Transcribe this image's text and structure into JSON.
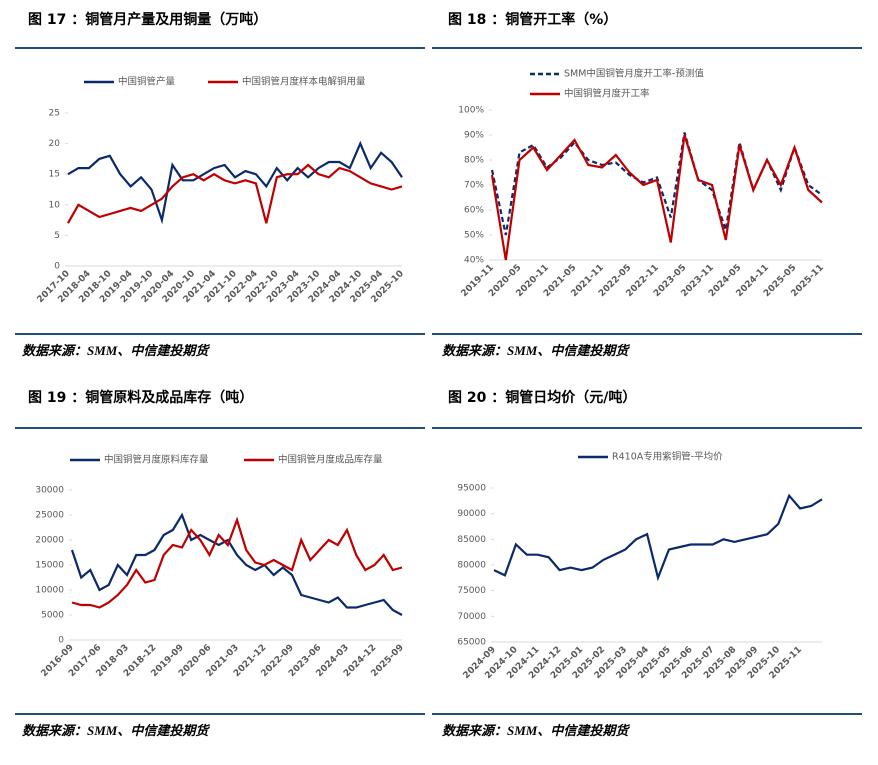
{
  "chart_data": [
    {
      "type": "line",
      "title": "图 17 ：铜管月产量及用铜量（万吨）",
      "source": "数据来源：SMM、中信建投期货",
      "categories": [
        "2017-10",
        null,
        "2018-04",
        null,
        "2018-10",
        null,
        "2019-04",
        null,
        "2019-10",
        null,
        "2020-04",
        null,
        "2020-10",
        null,
        "2021-04",
        null,
        "2021-10",
        null,
        "2022-04",
        null,
        "2022-10",
        null,
        "2023-04",
        null,
        "2023-10",
        null,
        "2024-04",
        null,
        "2024-10",
        null,
        "2025-04",
        null,
        "2025-10"
      ],
      "series": [
        {
          "name": "中国铜管产量",
          "color": "#0b2a6b",
          "values": [
            15,
            16,
            16,
            17.5,
            18,
            15,
            13,
            14.5,
            12.5,
            7.5,
            16.5,
            14,
            14,
            15,
            16,
            16.5,
            14.5,
            15.5,
            15,
            13,
            16,
            14,
            16,
            14.5,
            16,
            17,
            17,
            16,
            20,
            16,
            18.5,
            17,
            14.5
          ]
        },
        {
          "name": "中国铜管月度样本电解铜用量",
          "color": "#c00000",
          "values": [
            7,
            10,
            9,
            8,
            8.5,
            9,
            9.5,
            9,
            10,
            11,
            13,
            14.5,
            15,
            14,
            15,
            14,
            13.5,
            14,
            13.5,
            7,
            14.5,
            15,
            15,
            16.5,
            15,
            14.5,
            16,
            15.5,
            14.5,
            13.5,
            13,
            12.5,
            13
          ]
        }
      ],
      "ylim": [
        0,
        25
      ],
      "yticks": [
        0,
        5,
        10,
        15,
        20,
        25
      ]
    },
    {
      "type": "line",
      "title": "图 18 ：铜管开工率（%）",
      "source": "数据来源：SMM、中信建投期货",
      "categories": [
        "2019-11",
        null,
        "2020-05",
        null,
        "2020-11",
        null,
        "2021-05",
        null,
        "2021-11",
        null,
        "2022-05",
        null,
        "2022-11",
        null,
        "2023-05",
        null,
        "2023-11",
        null,
        "2024-05",
        null,
        "2024-11",
        null,
        "2025-05",
        null,
        "2025-11"
      ],
      "series": [
        {
          "name": "SMM中国铜管月度开工率-预测值",
          "color": "#0b2a6b",
          "line_style": "dashed",
          "values": [
            76,
            50,
            83,
            86,
            77,
            81,
            87,
            80,
            78,
            79,
            74,
            71,
            73,
            57,
            91,
            72,
            68,
            52,
            87,
            68,
            80,
            68,
            85,
            70,
            66
          ]
        },
        {
          "name": "中国铜管月度开工率",
          "color": "#c00000",
          "values": [
            74,
            40,
            80,
            85,
            76,
            82,
            88,
            78,
            77,
            82,
            75,
            70,
            72,
            47,
            90,
            72,
            70,
            48,
            86,
            68,
            80,
            70,
            85,
            68,
            63
          ]
        }
      ],
      "ylim": [
        40,
        100
      ],
      "yticks": [
        {
          "value": 40,
          "label": "40%"
        },
        {
          "value": 50,
          "label": "50%"
        },
        {
          "value": 60,
          "label": "60%"
        },
        {
          "value": 70,
          "label": "70%"
        },
        {
          "value": 80,
          "label": "80%"
        },
        {
          "value": 90,
          "label": "90%"
        },
        {
          "value": 100,
          "label": "100%"
        }
      ]
    },
    {
      "type": "line",
      "title": "图 19 ：铜管原料及成品库存（吨）",
      "source": "数据来源：SMM、中信建投期货",
      "categories": [
        "2016-09",
        null,
        null,
        "2017-06",
        null,
        null,
        "2018-03",
        null,
        null,
        "2018-12",
        null,
        null,
        "2019-09",
        null,
        null,
        "2020-06",
        null,
        null,
        "2021-03",
        null,
        null,
        "2021-12",
        null,
        null,
        "2022-09",
        null,
        null,
        "2023-06",
        null,
        null,
        "2024-03",
        null,
        null,
        "2024-12",
        null,
        null,
        "2025-09"
      ],
      "series": [
        {
          "name": "中国铜管月度原料库存量",
          "color": "#0b2a6b",
          "values": [
            18000,
            12500,
            14000,
            10000,
            11000,
            15000,
            13000,
            17000,
            17000,
            18000,
            21000,
            22000,
            25000,
            20000,
            21000,
            20000,
            19000,
            20000,
            17000,
            15000,
            14000,
            15000,
            13000,
            14500,
            13000,
            9000,
            8500,
            8000,
            7500,
            8500,
            6500,
            6500,
            7000,
            7500,
            8000,
            6000,
            5000
          ]
        },
        {
          "name": "中国铜管月度成品库存量",
          "color": "#c00000",
          "values": [
            7500,
            7000,
            7000,
            6500,
            7500,
            9000,
            11000,
            14000,
            11500,
            12000,
            17000,
            19000,
            18500,
            22000,
            20000,
            17000,
            21000,
            19000,
            24000,
            18000,
            15500,
            15000,
            16000,
            15000,
            14000,
            20000,
            16000,
            18000,
            20000,
            19000,
            22000,
            17000,
            14000,
            15000,
            17000,
            14000,
            14500
          ]
        }
      ],
      "ylim": [
        0,
        30000
      ],
      "yticks": [
        0,
        5000,
        10000,
        15000,
        20000,
        25000,
        30000
      ]
    },
    {
      "type": "line",
      "title": "图 20 ：铜管日均价（元/吨）",
      "source": "数据来源：SMM、中信建投期货",
      "categories": [
        "2024-09",
        null,
        "2024-10",
        null,
        "2024-11",
        null,
        "2024-12",
        null,
        "2025-01",
        null,
        "2025-02",
        null,
        "2025-03",
        null,
        "2025-04",
        null,
        "2025-05",
        null,
        "2025-06",
        null,
        "2025-07",
        null,
        "2025-08",
        null,
        "2025-09",
        null,
        "2025-10",
        null,
        "2025-11",
        null,
        null
      ],
      "series": [
        {
          "name": "R410A专用紫铜管-平均价",
          "color": "#0b2a6b",
          "values": [
            79000,
            78000,
            84000,
            82000,
            82000,
            81500,
            79000,
            79500,
            79000,
            79500,
            81000,
            82000,
            83000,
            85000,
            86000,
            77500,
            83000,
            83500,
            84000,
            84000,
            84000,
            85000,
            84500,
            85000,
            85500,
            86000,
            88000,
            93500,
            91000,
            91500,
            92800
          ]
        }
      ],
      "ylim": [
        65000,
        95000
      ],
      "yticks": [
        65000,
        70000,
        75000,
        80000,
        85000,
        90000,
        95000
      ]
    }
  ]
}
